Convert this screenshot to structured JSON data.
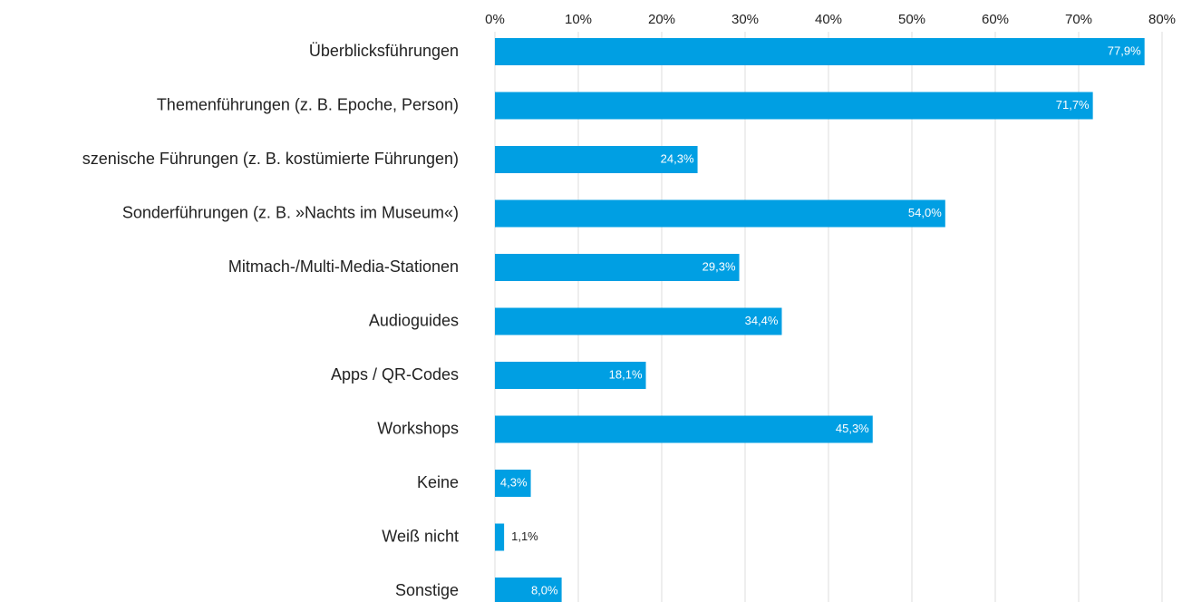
{
  "chart_data": {
    "type": "barh",
    "categories": [
      "Überblicksführungen",
      "Themenführungen (z. B. Epoche, Person)",
      "szenische Führungen (z. B. kostümierte Führungen)",
      "Sonderführungen (z. B. »Nachts im Museum«)",
      "Mitmach-/Multi-Media-Stationen",
      "Audioguides",
      "Apps / QR-Codes",
      "Workshops",
      "Keine",
      "Weiß nicht",
      "Sonstige"
    ],
    "values": [
      77.9,
      71.7,
      24.3,
      54.0,
      29.3,
      34.4,
      18.1,
      45.3,
      4.3,
      1.1,
      8.0
    ],
    "value_labels": [
      "77,9%",
      "71,7%",
      "24,3%",
      "54,0%",
      "29,3%",
      "34,4%",
      "18,1%",
      "45,3%",
      "4,3%",
      "1,1%",
      "8,0%"
    ],
    "color": "#009fe3",
    "xlim": [
      0,
      80
    ],
    "xticks": [
      {
        "value": 0,
        "label": "0%"
      },
      {
        "value": 10,
        "label": "10%"
      },
      {
        "value": 20,
        "label": "20%"
      },
      {
        "value": 30,
        "label": "30%"
      },
      {
        "value": 40,
        "label": "40%"
      },
      {
        "value": 50,
        "label": "50%"
      },
      {
        "value": 60,
        "label": "60%"
      },
      {
        "value": 70,
        "label": "70%"
      },
      {
        "value": 80,
        "label": "80%"
      }
    ],
    "grid": true
  }
}
